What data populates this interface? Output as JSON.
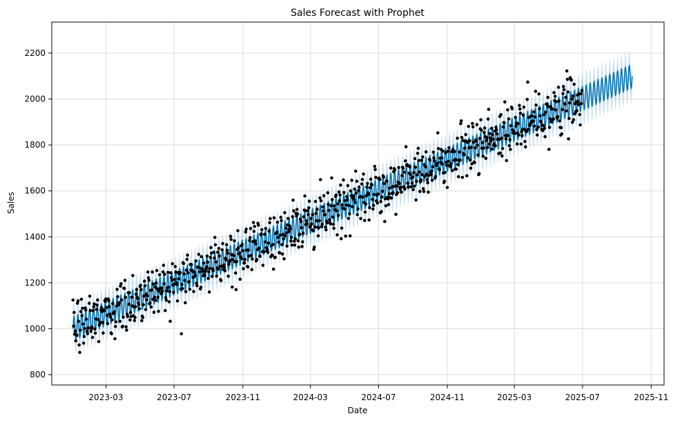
{
  "chart_data": {
    "type": "line",
    "title": "Sales Forecast with Prophet",
    "xlabel": "Date",
    "ylabel": "Sales",
    "xlim": [
      "2022-11-24",
      "2025-11-24"
    ],
    "ylim": [
      755,
      2335
    ],
    "grid": true,
    "x_ticks": [
      "2023-03",
      "2023-07",
      "2023-11",
      "2024-03",
      "2024-07",
      "2024-11",
      "2025-03",
      "2025-07",
      "2025-11"
    ],
    "y_ticks": [
      800,
      1000,
      1200,
      1400,
      1600,
      1800,
      2000,
      2200
    ],
    "date_range_forecast": {
      "start": "2023-01-01",
      "end": "2025-09-28",
      "actuals_end": "2025-06-30"
    },
    "forecast_model": {
      "trend_start_value": 1000,
      "trend_end_value": 2100,
      "weekly_amplitude": 55,
      "interval_half_width": 65
    },
    "series": [
      {
        "name": "",
        "type": "forecast-line",
        "color": "#0072B2"
      },
      {
        "name": "",
        "type": "uncertainty-band",
        "color": "#87BBDD"
      },
      {
        "name": "",
        "type": "observed-points",
        "color": "#000000"
      }
    ]
  }
}
